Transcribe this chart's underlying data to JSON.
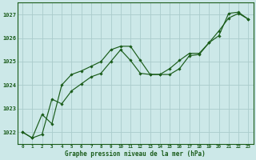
{
  "title": "Graphe pression niveau de la mer (hPa)",
  "background_color": "#cce8e8",
  "grid_color": "#aacccc",
  "line_color": "#1a5c1a",
  "marker_color": "#1a5c1a",
  "xlim": [
    -0.5,
    23.5
  ],
  "ylim": [
    1021.5,
    1027.5
  ],
  "yticks": [
    1022,
    1023,
    1024,
    1025,
    1026,
    1027
  ],
  "xtick_labels": [
    "0",
    "1",
    "2",
    "3",
    "4",
    "5",
    "6",
    "7",
    "8",
    "9",
    "10",
    "11",
    "12",
    "13",
    "14",
    "15",
    "16",
    "17",
    "18",
    "19",
    "20",
    "21",
    "22",
    "23"
  ],
  "series1_x": [
    0,
    1,
    2,
    3,
    4,
    5,
    6,
    7,
    8,
    9,
    10,
    11,
    12,
    13,
    14,
    15,
    16,
    17,
    18,
    19,
    20,
    21,
    22,
    23
  ],
  "series1_y": [
    1022.0,
    1021.75,
    1022.75,
    1022.35,
    1024.0,
    1024.45,
    1024.6,
    1024.8,
    1025.0,
    1025.5,
    1025.65,
    1025.65,
    1025.05,
    1024.45,
    1024.45,
    1024.45,
    1024.7,
    1025.25,
    1025.3,
    1025.8,
    1026.3,
    1026.85,
    1027.05,
    1026.8
  ],
  "series2_x": [
    0,
    1,
    2,
    3,
    4,
    5,
    6,
    7,
    8,
    9,
    10,
    11,
    12,
    13,
    14,
    15,
    16,
    17,
    18,
    19,
    20,
    21,
    22,
    23
  ],
  "series2_y": [
    1022.0,
    1021.75,
    1021.9,
    1023.4,
    1023.2,
    1023.75,
    1024.05,
    1024.35,
    1024.5,
    1025.0,
    1025.5,
    1025.05,
    1024.5,
    1024.45,
    1024.45,
    1024.7,
    1025.05,
    1025.35,
    1025.35,
    1025.8,
    1026.1,
    1027.05,
    1027.1,
    1026.8
  ]
}
